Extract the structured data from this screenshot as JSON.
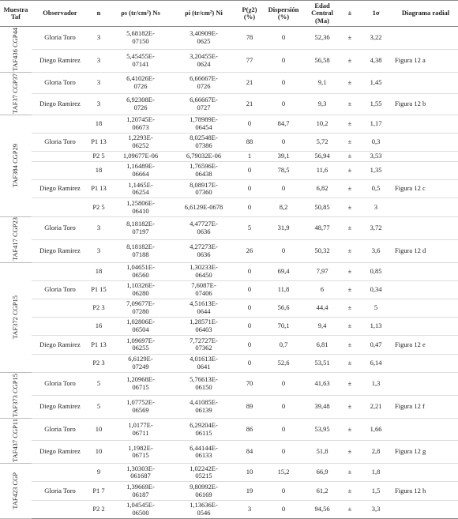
{
  "table": {
    "header": [
      "Muestra Taf",
      "Observador",
      "n",
      "ρs (tr/cm²) Ns",
      "ρi (tr/cm²) Ni",
      "P(χ2) (%)",
      "Dispersión (%)",
      "Edad Central (Ma)",
      "±",
      "1σ",
      "Diagrama radial"
    ],
    "groups": [
      {
        "sample": "TAF436 CGP44",
        "rows": [
          {
            "observer": "Gloria Toro",
            "n": "3",
            "rho_s": "5,68182E-07150",
            "rho_i": "3,40909E-0625",
            "p": "78",
            "disp": "0",
            "age": "52,36",
            "pm": "±",
            "sigma": "3,22"
          },
          {
            "observer": "Diego Ramirez",
            "n": "3",
            "rho_s": "5,45455E-07141",
            "rho_i": "3,20455E-0624",
            "p": "77",
            "disp": "0",
            "age": "56,58",
            "pm": "±",
            "sigma": "4,38",
            "diagram": "Figura 12 a"
          }
        ]
      },
      {
        "sample": "TAF37 CGP37",
        "rows": [
          {
            "observer": "Gloria Toro",
            "n": "3",
            "rho_s": "6,41026E-0726",
            "rho_i": "6,66667E-0726",
            "p": "21",
            "disp": "0",
            "age": "9,1",
            "pm": "±",
            "sigma": "1,45"
          },
          {
            "observer": "Diego Ramirez",
            "n": "3",
            "rho_s": "6,92308E-0726",
            "rho_i": "6,66667E-0727",
            "p": "21",
            "disp": "0",
            "age": "9,3",
            "pm": "±",
            "sigma": "1,55",
            "diagram": "Figura 12 b"
          }
        ]
      },
      {
        "sample": "TAF384 CGP29",
        "rows": [
          {
            "n": "18",
            "rho_s": "1,20745E-06673",
            "rho_i": "1,78989E-06454",
            "p": "0",
            "disp": "84,7",
            "age": "10,2",
            "pm": "±",
            "sigma": "1,17"
          },
          {
            "observer": "Gloria Toro",
            "n": "P1 13",
            "rho_s": "1,2293E-06252",
            "rho_i": "8,02548E-07386",
            "p": "88",
            "disp": "0",
            "age": "5,72",
            "pm": "±",
            "sigma": "0,3"
          },
          {
            "n": "P2 5",
            "rho_s": "1,09677E-06",
            "rho_i": "6,79032E-06",
            "p": "1",
            "disp": "39,1",
            "age": "56,94",
            "pm": "±",
            "sigma": "3,53"
          },
          {
            "n": "18",
            "rho_s": "1,16489E-06664",
            "rho_i": "1,76596E-06438",
            "p": "0",
            "disp": "78,5",
            "age": "11,6",
            "pm": "±",
            "sigma": "1,35"
          },
          {
            "observer": "Diego Ramirez",
            "n": "P1 13",
            "rho_s": "1,1465E-06254",
            "rho_i": "8,08917E-07360",
            "p": "0",
            "disp": "0",
            "age": "6,82",
            "pm": "±",
            "sigma": "0,5",
            "diagram": "Figura 12 c"
          },
          {
            "n": "P2 5",
            "rho_s": "1,25806E-06410",
            "rho_i": "6,6129E-0678",
            "p": "0",
            "disp": "8,2",
            "age": "50,85",
            "pm": "±",
            "sigma": "3"
          }
        ]
      },
      {
        "sample": "TAF417 CGP23",
        "rows": [
          {
            "observer": "Gloria Toro",
            "n": "3",
            "rho_s": "8,18182E-07197",
            "rho_i": "4,47727E-0636",
            "p": "5",
            "disp": "31,9",
            "age": "48,77",
            "pm": "±",
            "sigma": "3,72"
          },
          {
            "observer": "Diego Ramirez",
            "n": "3",
            "rho_s": "8,18182E-07188",
            "rho_i": "4,27273E-0636",
            "p": "26",
            "disp": "0",
            "age": "50,32",
            "pm": "±",
            "sigma": "3,6",
            "diagram": "Figura 12 d"
          }
        ]
      },
      {
        "sample": "TAF372 CGP15",
        "rows": [
          {
            "n": "18",
            "rho_s": "1,04651E-06560",
            "rho_i": "1,30233E-06450",
            "p": "0",
            "disp": "69,4",
            "age": "7,97",
            "pm": "±",
            "sigma": "0,85"
          },
          {
            "observer": "Gloria Toro",
            "n": "P1 15",
            "rho_s": "1,10326E-06280",
            "rho_i": "7,6087E-07406",
            "p": "0",
            "disp": "11,8",
            "age": "6",
            "pm": "±",
            "sigma": "0,34"
          },
          {
            "n": "P2 3",
            "rho_s": "7,09677E-07280",
            "rho_i": "4,51613E-0644",
            "p": "0",
            "disp": "56,6",
            "age": "44,4",
            "pm": "±",
            "sigma": "5"
          },
          {
            "n": "16",
            "rho_s": "1,02806E-06504",
            "rho_i": "1,28571E-06403",
            "p": "0",
            "disp": "70,1",
            "age": "9,4",
            "pm": "±",
            "sigma": "1,13"
          },
          {
            "observer": "Diego Ramirez",
            "n": "P1 13",
            "rho_s": "1,09697E-06255",
            "rho_i": "7,72727E-07362",
            "p": "0",
            "disp": "0,7",
            "age": "6,81",
            "pm": "±",
            "sigma": "0,47",
            "diagram": "Figura 12 e"
          },
          {
            "n": "P2 3",
            "rho_s": "6,6129E-07249",
            "rho_i": "4,01613E-0641",
            "p": "0",
            "disp": "52,6",
            "age": "53,51",
            "pm": "±",
            "sigma": "6,14"
          }
        ]
      },
      {
        "sample": "TAF373 CGP15",
        "rows": [
          {
            "observer": "Gloria Toro",
            "n": "5",
            "rho_s": "1,20968E-06715",
            "rho_i": "5,76613E-06150",
            "p": "70",
            "disp": "0",
            "age": "41,63",
            "pm": "±",
            "sigma": "1,3"
          },
          {
            "observer": "Diego Ramirez",
            "n": "5",
            "rho_s": "1,07752E-06569",
            "rho_i": "4,41085E-06139",
            "p": "89",
            "disp": "0",
            "age": "39,48",
            "pm": "±",
            "sigma": "2,21",
            "diagram": "Figura 12 f"
          }
        ]
      },
      {
        "sample": "TAF437 CGP11",
        "rows": [
          {
            "observer": "Gloria Toro",
            "n": "10",
            "rho_s": "1,0177E-06711",
            "rho_i": "6,29204E-06115",
            "p": "86",
            "disp": "0",
            "age": "53,95",
            "pm": "±",
            "sigma": "1,66"
          },
          {
            "observer": "Diego Ramirez",
            "n": "10",
            "rho_s": "1,1982E-06715",
            "rho_i": "6,44144E-06133",
            "p": "84",
            "disp": "0",
            "age": "51,8",
            "pm": "±",
            "sigma": "2,8",
            "diagram": "Figura 12 g"
          }
        ]
      },
      {
        "sample": "TAF423 CGP",
        "rows": [
          {
            "n": "9",
            "rho_s": "1,30303E-061687",
            "rho_i": "1,02242E-05215",
            "p": "10",
            "disp": "15,2",
            "age": "66,9",
            "pm": "±",
            "sigma": "1,8"
          },
          {
            "observer": "Gloria Toro",
            "n": "P1 7",
            "rho_s": "1,39669E-06187",
            "rho_i": "9,80992E-06169",
            "p": "19",
            "disp": "0",
            "age": "61,2",
            "pm": "±",
            "sigma": "1,5",
            "diagram": "Figura 12 h"
          },
          {
            "n": "P2 2",
            "rho_s": "1,04545E-06500",
            "rho_i": "1,13636E-0546",
            "p": "3",
            "disp": "0",
            "age": "94,56",
            "pm": "±",
            "sigma": "3,3"
          }
        ]
      }
    ]
  }
}
